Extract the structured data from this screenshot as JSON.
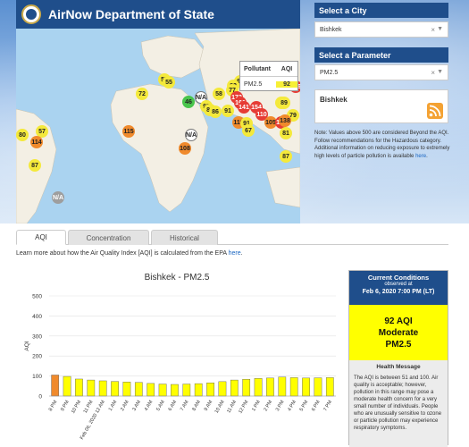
{
  "header": {
    "title": "AirNow Department of State"
  },
  "map_popup": {
    "col_pollutant": "Pollutant",
    "col_aqi": "AQI",
    "pollutant": "PM2.5",
    "aqi": "92"
  },
  "map_markers": [
    {
      "label": "156",
      "color": "red"
    },
    {
      "label": "156",
      "color": "red"
    },
    {
      "label": "55",
      "color": "yellow"
    },
    {
      "label": "55",
      "color": "yellow"
    },
    {
      "label": "72",
      "color": "yellow"
    },
    {
      "label": "58",
      "color": "yellow"
    },
    {
      "label": "92",
      "color": "yellow"
    },
    {
      "label": "82",
      "color": "yellow"
    },
    {
      "label": "77",
      "color": "yellow"
    },
    {
      "label": "173",
      "color": "red"
    },
    {
      "label": "161",
      "color": "red"
    },
    {
      "label": "141",
      "color": "red"
    },
    {
      "label": "154",
      "color": "red"
    },
    {
      "label": "110",
      "color": "red"
    },
    {
      "label": "89",
      "color": "yellow"
    },
    {
      "label": "79",
      "color": "yellow"
    },
    {
      "label": "46",
      "color": "green"
    },
    {
      "label": "N/A",
      "color": "white"
    },
    {
      "label": "95",
      "color": "yellow"
    },
    {
      "label": "80",
      "color": "yellow"
    },
    {
      "label": "86",
      "color": "yellow"
    },
    {
      "label": "91",
      "color": "yellow"
    },
    {
      "label": "116",
      "color": "orange"
    },
    {
      "label": "91",
      "color": "yellow"
    },
    {
      "label": "67",
      "color": "yellow"
    },
    {
      "label": "105",
      "color": "orange"
    },
    {
      "label": "153",
      "color": "red"
    },
    {
      "label": "138",
      "color": "orange"
    },
    {
      "label": "81",
      "color": "yellow"
    },
    {
      "label": "89",
      "color": "yellow"
    },
    {
      "label": "87",
      "color": "yellow"
    },
    {
      "label": "115",
      "color": "orange"
    },
    {
      "label": "N/A",
      "color": "white"
    },
    {
      "label": "108",
      "color": "orange"
    },
    {
      "label": "80",
      "color": "yellow"
    },
    {
      "label": "57",
      "color": "yellow"
    },
    {
      "label": "114",
      "color": "orange"
    },
    {
      "label": "87",
      "color": "yellow"
    },
    {
      "label": "N/A",
      "color": "gray"
    }
  ],
  "city": {
    "heading": "Select a City",
    "value": "Bishkek"
  },
  "parameter": {
    "heading": "Select a Parameter",
    "value": "PM2.5"
  },
  "info": {
    "title": "Bishkek"
  },
  "note": {
    "text": "Note: Values above 500 are considered Beyond the AQI. Follow recommendations for the Hazardous category. Additional information on reducing exposure to extremely high levels of particle pollution is available",
    "link": "here",
    "end": "."
  },
  "tabs": [
    {
      "label": "AQI",
      "active": true
    },
    {
      "label": "Concentration",
      "active": false
    },
    {
      "label": "Historical",
      "active": false
    }
  ],
  "learn": {
    "text": "Learn more about how the Air Quality Index [AQI] is calculated from the EPA",
    "link": "here",
    "end": "."
  },
  "chart_data": {
    "type": "bar",
    "title": "Bishkek - PM2.5",
    "ylabel": "AQI",
    "xlabel": "",
    "ylim": [
      0,
      500
    ],
    "yticks": [
      0,
      100,
      200,
      300,
      400,
      500
    ],
    "categories": [
      "8 PM",
      "9 PM",
      "10 PM",
      "11 PM",
      "Feb 06, 2020 12 AM",
      "1 AM",
      "2 AM",
      "3 AM",
      "4 AM",
      "5 AM",
      "6 AM",
      "7 AM",
      "8 AM",
      "9 AM",
      "10 AM",
      "11 AM",
      "12 PM",
      "1 PM",
      "2 PM",
      "3 PM",
      "4 PM",
      "5 PM",
      "6 PM",
      "7 PM"
    ],
    "values": [
      105,
      98,
      85,
      80,
      76,
      73,
      70,
      68,
      63,
      60,
      58,
      60,
      62,
      66,
      72,
      80,
      84,
      88,
      90,
      95,
      92,
      90,
      91,
      92
    ],
    "colors": [
      "#f08a2c",
      "#ffff00",
      "#ffff00",
      "#ffff00",
      "#ffff00",
      "#ffff00",
      "#ffff00",
      "#ffff00",
      "#ffff00",
      "#ffff00",
      "#ffff00",
      "#ffff00",
      "#ffff00",
      "#ffff00",
      "#ffff00",
      "#ffff00",
      "#ffff00",
      "#ffff00",
      "#ffff00",
      "#ffff00",
      "#ffff00",
      "#ffff00",
      "#ffff00",
      "#ffff00"
    ],
    "grid": true,
    "legend": "none"
  },
  "conditions": {
    "heading": "Current Conditions",
    "observed": "observed at",
    "time": "Feb 6, 2020 7:00 PM (LT)",
    "aqi": "92 AQI",
    "category": "Moderate",
    "pollutant": "PM2.5",
    "message_title": "Health Message",
    "message": "The AQI is between 51 and 100. Air quality is acceptable; however, pollution in this range may pose a moderate health concern for a very small number of individuals. People who are unusually sensitive to ozone or particle pollution may experience respiratory symptoms."
  },
  "colors": {
    "brand": "#1f4e8b",
    "moderate": "#ffff00",
    "usg": "#f08a2c",
    "unhealthy": "#e63c35",
    "good": "#49c44c"
  }
}
